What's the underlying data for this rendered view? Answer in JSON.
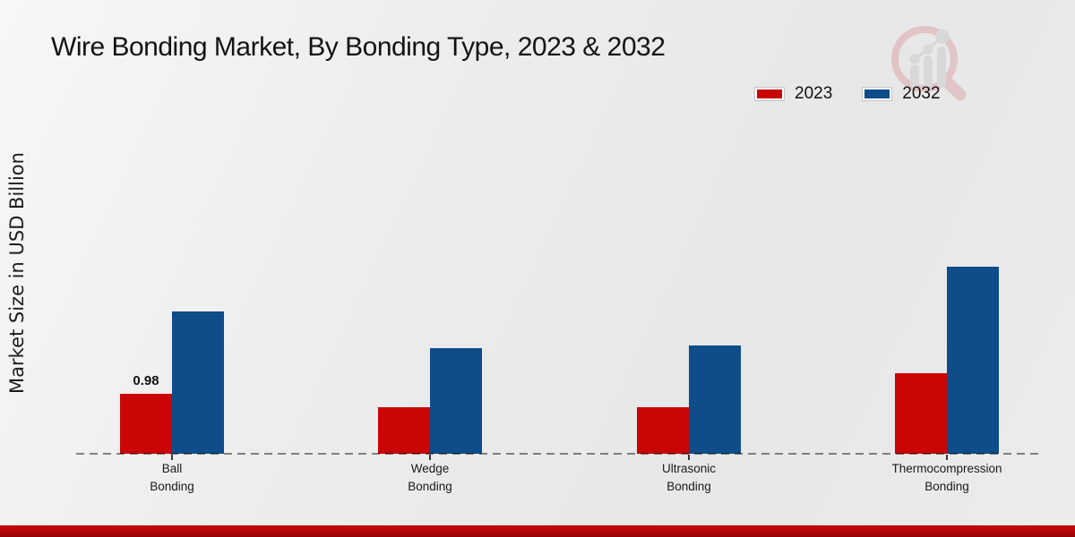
{
  "page": {
    "title": "Wire Bonding Market, By Bonding Type, 2023 & 2032"
  },
  "watermark": {
    "icon": "magnifier-bar-chart-logo",
    "ring_color": "#dfb8bc",
    "bars_color": "#d4d4d4"
  },
  "chart_data": {
    "type": "bar",
    "title": "Wire Bonding Market, By Bonding Type, 2023 & 2032",
    "xlabel": "",
    "ylabel": "Market Size in USD Billion",
    "categories": [
      "Ball\nBonding",
      "Wedge\nBonding",
      "Ultrasonic\nBonding",
      "Thermocompression\nBonding"
    ],
    "series": [
      {
        "name": "2023",
        "color": "#C90505",
        "values": [
          0.98,
          0.76,
          0.76,
          1.31
        ]
      },
      {
        "name": "2032",
        "color": "#0E4C8A",
        "values": [
          2.32,
          1.73,
          1.77,
          3.05
        ]
      }
    ],
    "data_labels": [
      {
        "category_index": 0,
        "series_index": 0,
        "text": "0.98"
      }
    ],
    "ylim": [
      0,
      3.5
    ],
    "grid": false,
    "axis_style": "dashed-baseline-only",
    "legend_position": "top-right"
  },
  "colors": {
    "accent_red": "#C90505",
    "accent_blue": "#0E4C8A",
    "footer_band": "#B30505",
    "background": "#ECECEC"
  }
}
